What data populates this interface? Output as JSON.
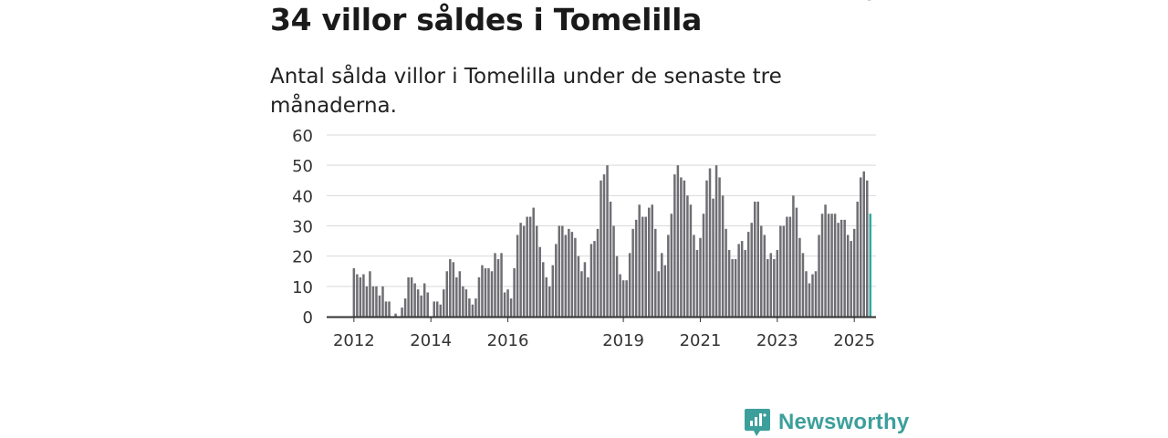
{
  "header": {
    "title": "34 villor såldes i Tomelilla",
    "subtitle": "Antal sålda villor i Tomelilla under de senaste tre månaderna."
  },
  "brand": {
    "name": "Newsworthy",
    "color": "#3c9f9b"
  },
  "colors": {
    "bar": "#6e6e73",
    "highlight": "#2fa7a3",
    "grid": "#d9d9d9",
    "axis": "#333333"
  },
  "chart_data": {
    "type": "bar",
    "title": "34 villor såldes i Tomelilla",
    "subtitle": "Antal sålda villor i Tomelilla under de senaste tre månaderna.",
    "xlabel": "",
    "ylabel": "",
    "ylim": [
      0,
      60
    ],
    "yticks": [
      0,
      10,
      20,
      30,
      40,
      50,
      60
    ],
    "xticks": [
      "2012",
      "2014",
      "2016",
      "2019",
      "2021",
      "2023",
      "2025"
    ],
    "xtick_month_index": [
      0,
      24,
      48,
      84,
      108,
      132,
      156
    ],
    "start": "2012-01",
    "grid": true,
    "legend": "none",
    "annotation": {
      "label": "34",
      "series_index": 163
    },
    "values": [
      16,
      14,
      13,
      14,
      10,
      15,
      10,
      10,
      7,
      10,
      5,
      5,
      0,
      1,
      0,
      3,
      6,
      13,
      13,
      11,
      9,
      7,
      11,
      8,
      0,
      5,
      5,
      4,
      9,
      15,
      19,
      18,
      13,
      15,
      10,
      9,
      6,
      4,
      6,
      13,
      17,
      16,
      16,
      15,
      21,
      19,
      21,
      8,
      9,
      6,
      16,
      27,
      31,
      30,
      33,
      33,
      36,
      30,
      23,
      18,
      13,
      10,
      17,
      24,
      30,
      30,
      27,
      29,
      28,
      26,
      20,
      15,
      18,
      13,
      24,
      25,
      29,
      45,
      47,
      50,
      38,
      30,
      20,
      14,
      12,
      12,
      21,
      29,
      32,
      37,
      33,
      33,
      36,
      37,
      29,
      15,
      21,
      17,
      27,
      34,
      47,
      50,
      46,
      45,
      40,
      37,
      27,
      22,
      26,
      34,
      45,
      49,
      39,
      50,
      46,
      40,
      29,
      22,
      19,
      19,
      24,
      25,
      22,
      28,
      31,
      38,
      38,
      30,
      27,
      19,
      21,
      19,
      22,
      30,
      30,
      33,
      33,
      40,
      36,
      26,
      21,
      15,
      11,
      14,
      15,
      27,
      34,
      37,
      34,
      34,
      34,
      31,
      32,
      32,
      27,
      25,
      29,
      38,
      46,
      48,
      45,
      34
    ]
  }
}
